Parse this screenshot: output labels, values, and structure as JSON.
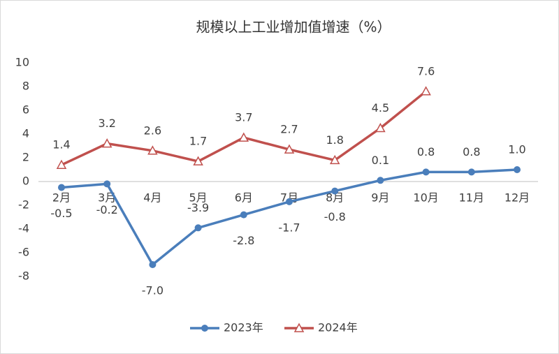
{
  "chart_data": {
    "type": "line",
    "title": "规模以上工业增加值增速（%）",
    "categories": [
      "2月",
      "3月",
      "4月",
      "5月",
      "6月",
      "7月",
      "8月",
      "9月",
      "10月",
      "11月",
      "12月"
    ],
    "series": [
      {
        "name": "2023年",
        "color": "#4a7ebb",
        "marker": "circle",
        "values": [
          -0.5,
          -0.2,
          -7.0,
          -3.9,
          -2.8,
          -1.7,
          -0.8,
          0.1,
          0.8,
          0.8,
          1.0
        ],
        "value_labels": [
          "-0.5",
          "-0.2",
          "-7.0",
          "-3.9",
          "-2.8",
          "-1.7",
          "-0.8",
          "0.1",
          "0.8",
          "0.8",
          "1.0"
        ]
      },
      {
        "name": "2024年",
        "color": "#c0504d",
        "marker": "triangle",
        "values": [
          1.4,
          3.2,
          2.6,
          1.7,
          3.7,
          2.7,
          1.8,
          4.5,
          7.6,
          null,
          null
        ],
        "value_labels": [
          "1.4",
          "3.2",
          "2.6",
          "1.7",
          "3.7",
          "2.7",
          "1.8",
          "4.5",
          "7.6",
          null,
          null
        ]
      }
    ],
    "ylim": [
      -8,
      10
    ],
    "yticks": [
      -8,
      -6,
      -4,
      -2,
      0,
      2,
      4,
      6,
      8,
      10
    ],
    "grid": false,
    "legend": "bottom"
  }
}
